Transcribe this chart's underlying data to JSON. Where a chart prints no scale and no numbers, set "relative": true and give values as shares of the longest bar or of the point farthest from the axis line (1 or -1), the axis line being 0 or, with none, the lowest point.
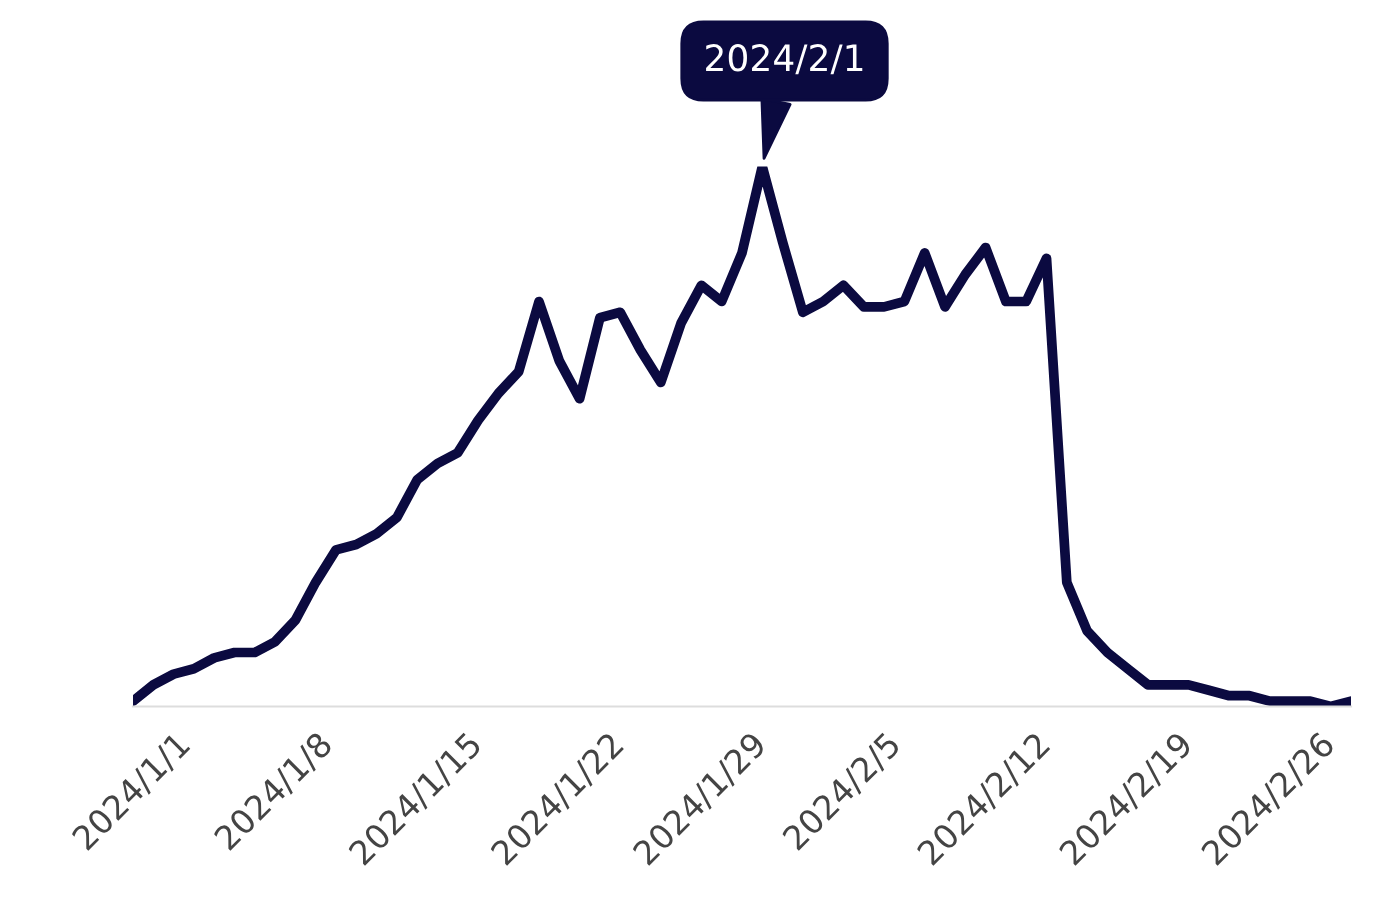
{
  "chart_data": {
    "type": "line",
    "relative": true,
    "x": [
      "2024-01-01",
      "2024-01-02",
      "2024-01-03",
      "2024-01-04",
      "2024-01-05",
      "2024-01-06",
      "2024-01-07",
      "2024-01-08",
      "2024-01-09",
      "2024-01-10",
      "2024-01-11",
      "2024-01-12",
      "2024-01-13",
      "2024-01-14",
      "2024-01-15",
      "2024-01-16",
      "2024-01-17",
      "2024-01-18",
      "2024-01-19",
      "2024-01-20",
      "2024-01-21",
      "2024-01-22",
      "2024-01-23",
      "2024-01-24",
      "2024-01-25",
      "2024-01-26",
      "2024-01-27",
      "2024-01-28",
      "2024-01-29",
      "2024-01-30",
      "2024-01-31",
      "2024-02-01",
      "2024-02-02",
      "2024-02-03",
      "2024-02-04",
      "2024-02-05",
      "2024-02-06",
      "2024-02-07",
      "2024-02-08",
      "2024-02-09",
      "2024-02-10",
      "2024-02-11",
      "2024-02-12",
      "2024-02-13",
      "2024-02-14",
      "2024-02-15",
      "2024-02-16",
      "2024-02-17",
      "2024-02-18",
      "2024-02-19",
      "2024-02-20",
      "2024-02-21",
      "2024-02-22",
      "2024-02-23",
      "2024-02-24",
      "2024-02-25",
      "2024-02-26",
      "2024-02-27",
      "2024-02-28",
      "2024-02-29",
      "2024-03-01"
    ],
    "series": [
      {
        "color": "#0b0a40",
        "values": [
          0.01,
          0.04,
          0.06,
          0.07,
          0.09,
          0.1,
          0.1,
          0.12,
          0.16,
          0.23,
          0.29,
          0.3,
          0.32,
          0.35,
          0.42,
          0.45,
          0.47,
          0.53,
          0.58,
          0.62,
          0.75,
          0.64,
          0.57,
          0.72,
          0.73,
          0.66,
          0.6,
          0.71,
          0.78,
          0.75,
          0.84,
          1,
          0.86,
          0.73,
          0.75,
          0.78,
          0.74,
          0.74,
          0.75,
          0.84,
          0.74,
          0.8,
          0.85,
          0.75,
          0.75,
          0.83,
          0.23,
          0.14,
          0.1,
          0.07,
          0.04,
          0.04,
          0.04,
          0.03,
          0.02,
          0.02,
          0.01,
          0.01,
          0.01,
          0.0,
          0.01
        ]
      }
    ],
    "xlim": [
      "2024-01-01",
      "2024-03-01"
    ],
    "xticks": [
      {
        "value": "2024-01-01",
        "label": "2024/1/1"
      },
      {
        "value": "2024-01-08",
        "label": "2024/1/8"
      },
      {
        "value": "2024-01-15",
        "label": "2024/1/15"
      },
      {
        "value": "2024-01-22",
        "label": "2024/1/22"
      },
      {
        "value": "2024-01-29",
        "label": "2024/1/29"
      },
      {
        "value": "2024-02-05",
        "label": "2024/2/5"
      },
      {
        "value": "2024-02-12",
        "label": "2024/2/12"
      },
      {
        "value": "2024-02-19",
        "label": "2024/2/19"
      },
      {
        "value": "2024-02-26",
        "label": "2024/2/26"
      }
    ],
    "annotations": [
      {
        "text": "2024/2/1",
        "x": "2024-02-01",
        "y": 1
      }
    ],
    "line_style": "solid",
    "marker": "none",
    "grid": false,
    "legend": false
  }
}
